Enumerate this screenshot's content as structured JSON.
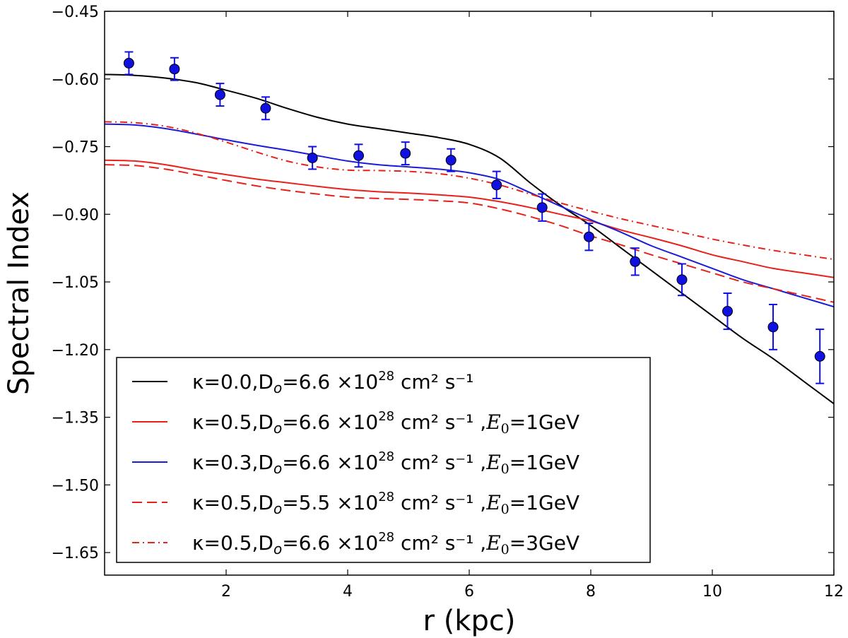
{
  "chart_data": {
    "type": "line",
    "title": "",
    "xlabel": "r (kpc)",
    "ylabel": "Spectral Index",
    "xlim": [
      0.0,
      12.0
    ],
    "ylim": [
      -1.7,
      -0.45
    ],
    "grid": false,
    "legend_position": "lower-left",
    "x_ticks": [
      2,
      4,
      6,
      8,
      10,
      12
    ],
    "x_tick_labels": [
      "2",
      "4",
      "6",
      "8",
      "10",
      "12"
    ],
    "y_ticks": [
      -0.45,
      -0.6,
      -0.75,
      -0.9,
      -1.05,
      -1.2,
      -1.35,
      -1.5,
      -1.65
    ],
    "y_tick_labels": [
      "−0.45",
      "−0.60",
      "−0.75",
      "−0.90",
      "−1.05",
      "−1.20",
      "−1.35",
      "−1.50",
      "−1.65"
    ],
    "series": [
      {
        "name": "kappa=0.0, D_o=6.6x10^28 cm^2 s^-1",
        "color": "#000000",
        "dash": "solid",
        "legend": {
          "pre": "κ=0.0,D",
          "sub": "o",
          "mid": "=6.6 ×10",
          "sup": "28",
          "unit": "cm²  s⁻¹",
          "epre": "",
          "esub": "",
          "epost": ""
        },
        "x": [
          0.0,
          0.5,
          1.0,
          1.5,
          2.0,
          2.5,
          3.0,
          3.5,
          4.0,
          4.5,
          5.0,
          5.5,
          6.0,
          6.5,
          7.0,
          7.5,
          8.0,
          8.5,
          9.0,
          9.5,
          10.0,
          10.5,
          11.0,
          11.5,
          12.0
        ],
        "y": [
          -0.59,
          -0.592,
          -0.598,
          -0.608,
          -0.625,
          -0.643,
          -0.665,
          -0.685,
          -0.7,
          -0.71,
          -0.72,
          -0.73,
          -0.745,
          -0.775,
          -0.83,
          -0.88,
          -0.925,
          -0.975,
          -1.025,
          -1.075,
          -1.125,
          -1.175,
          -1.22,
          -1.27,
          -1.32
        ]
      },
      {
        "name": "kappa=0.5, D_o=6.6x10^28 cm^2 s^-1, E_0=1GeV",
        "color": "#e8211b",
        "dash": "solid",
        "legend": {
          "pre": "κ=0.5,D",
          "sub": "o",
          "mid": "=6.6 ×10",
          "sup": "28",
          "unit": "cm²  s⁻¹ ,",
          "epre": "E",
          "esub": "0",
          "epost": "=1GeV"
        },
        "x": [
          0.0,
          0.5,
          1.0,
          1.5,
          2.0,
          2.5,
          3.0,
          3.5,
          4.0,
          4.5,
          5.0,
          5.5,
          6.0,
          6.5,
          7.0,
          7.5,
          8.0,
          8.5,
          9.0,
          9.5,
          10.0,
          10.5,
          11.0,
          11.5,
          12.0
        ],
        "y": [
          -0.78,
          -0.782,
          -0.79,
          -0.802,
          -0.812,
          -0.822,
          -0.83,
          -0.838,
          -0.845,
          -0.85,
          -0.853,
          -0.857,
          -0.862,
          -0.872,
          -0.885,
          -0.9,
          -0.915,
          -0.935,
          -0.952,
          -0.97,
          -0.99,
          -1.005,
          -1.02,
          -1.03,
          -1.04
        ]
      },
      {
        "name": "kappa=0.3, D_o=6.6x10^28 cm^2 s^-1, E_0=1GeV",
        "color": "#1b1bd8",
        "dash": "solid",
        "legend": {
          "pre": "κ=0.3,D",
          "sub": "o",
          "mid": "=6.6 ×10",
          "sup": "28",
          "unit": "cm²  s⁻¹ ,",
          "epre": "E",
          "esub": "0",
          "epost": "=1GeV"
        },
        "x": [
          0.0,
          0.5,
          1.0,
          1.5,
          2.0,
          2.5,
          3.0,
          3.5,
          4.0,
          4.5,
          5.0,
          5.5,
          6.0,
          6.5,
          7.0,
          7.5,
          8.0,
          8.5,
          9.0,
          9.5,
          10.0,
          10.5,
          11.0,
          11.5,
          12.0
        ],
        "y": [
          -0.7,
          -0.702,
          -0.71,
          -0.722,
          -0.735,
          -0.747,
          -0.758,
          -0.77,
          -0.782,
          -0.79,
          -0.795,
          -0.8,
          -0.808,
          -0.823,
          -0.852,
          -0.882,
          -0.912,
          -0.94,
          -0.97,
          -0.995,
          -1.02,
          -1.045,
          -1.065,
          -1.085,
          -1.105
        ]
      },
      {
        "name": "kappa=0.5, D_o=5.5x10^28 cm^2 s^-1, E_0=1GeV",
        "color": "#e8211b",
        "dash": "dashed",
        "legend": {
          "pre": "κ=0.5,D",
          "sub": "o",
          "mid": "=5.5 ×10",
          "sup": "28",
          "unit": "cm²  s⁻¹ ,",
          "epre": "E",
          "esub": "0",
          "epost": "=1GeV"
        },
        "x": [
          0.0,
          0.5,
          1.0,
          1.5,
          2.0,
          2.5,
          3.0,
          3.5,
          4.0,
          4.5,
          5.0,
          5.5,
          6.0,
          6.5,
          7.0,
          7.5,
          8.0,
          8.5,
          9.0,
          9.5,
          10.0,
          10.5,
          11.0,
          11.5,
          12.0
        ],
        "y": [
          -0.79,
          -0.792,
          -0.8,
          -0.812,
          -0.825,
          -0.837,
          -0.847,
          -0.855,
          -0.862,
          -0.865,
          -0.867,
          -0.87,
          -0.875,
          -0.888,
          -0.905,
          -0.925,
          -0.948,
          -0.968,
          -0.99,
          -1.01,
          -1.03,
          -1.05,
          -1.065,
          -1.08,
          -1.095
        ]
      },
      {
        "name": "kappa=0.5, D_o=6.6x10^28 cm^2 s^-1, E_0=3GeV",
        "color": "#e8211b",
        "dash": "dashdot",
        "legend": {
          "pre": "κ=0.5,D",
          "sub": "o",
          "mid": "=6.6 ×10",
          "sup": "28",
          "unit": "cm²  s⁻¹ ,",
          "epre": "E",
          "esub": "0",
          "epost": "=3GeV"
        },
        "x": [
          0.0,
          0.5,
          1.0,
          1.5,
          2.0,
          2.5,
          3.0,
          3.5,
          4.0,
          4.5,
          5.0,
          5.5,
          6.0,
          6.5,
          7.0,
          7.5,
          8.0,
          8.5,
          9.0,
          9.5,
          10.0,
          10.5,
          11.0,
          11.5,
          12.0
        ],
        "y": [
          -0.695,
          -0.697,
          -0.705,
          -0.72,
          -0.74,
          -0.762,
          -0.782,
          -0.795,
          -0.802,
          -0.803,
          -0.805,
          -0.81,
          -0.82,
          -0.835,
          -0.855,
          -0.875,
          -0.893,
          -0.91,
          -0.925,
          -0.94,
          -0.955,
          -0.968,
          -0.98,
          -0.99,
          -1.0
        ]
      }
    ],
    "data_points": {
      "name": "data",
      "color": "#1010e0",
      "x": [
        0.4,
        1.15,
        1.9,
        2.65,
        3.42,
        4.18,
        4.95,
        5.7,
        6.45,
        7.2,
        7.97,
        8.73,
        9.5,
        10.25,
        11.0,
        11.77
      ],
      "y": [
        -0.565,
        -0.578,
        -0.635,
        -0.665,
        -0.775,
        -0.77,
        -0.765,
        -0.78,
        -0.835,
        -0.885,
        -0.95,
        -1.005,
        -1.045,
        -1.115,
        -1.15,
        -1.215
      ],
      "yerr": [
        0.025,
        0.025,
        0.025,
        0.025,
        0.025,
        0.025,
        0.025,
        0.025,
        0.03,
        0.03,
        0.03,
        0.03,
        0.035,
        0.04,
        0.05,
        0.06
      ]
    }
  }
}
